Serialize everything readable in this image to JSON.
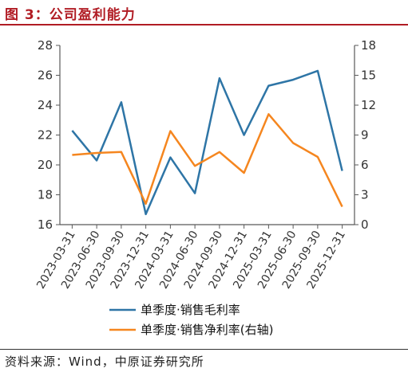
{
  "header": {
    "title": "图 3：公司盈利能力"
  },
  "footer": {
    "source": "资料来源：Wind，中原证券研究所"
  },
  "colors": {
    "series1": "#2e75a6",
    "series2": "#f5861f",
    "title": "#b11c24"
  },
  "chart_data": {
    "type": "line",
    "x": [
      "2023-03-31",
      "2023-06-30",
      "2023-09-30",
      "2023-12-31",
      "2024-03-31",
      "2024-06-30",
      "2024-09-30",
      "2024-12-31",
      "2025-03-31",
      "2025-06-30",
      "2025-09-30",
      "2025-12-31"
    ],
    "series": [
      {
        "name": "单季度·销售毛利率",
        "axis": "left",
        "values": [
          22.3,
          20.3,
          24.2,
          16.7,
          20.5,
          18.1,
          25.8,
          22.0,
          25.3,
          25.7,
          26.3,
          19.6
        ]
      },
      {
        "name": "单季度·销售净利率(右轴)",
        "axis": "right",
        "values": [
          7.0,
          7.2,
          7.3,
          2.1,
          9.4,
          5.9,
          7.3,
          5.2,
          11.1,
          8.2,
          6.8,
          1.8
        ]
      }
    ],
    "left_axis": {
      "ylim": [
        16,
        28
      ],
      "ticks": [
        "16",
        "18",
        "20",
        "22",
        "24",
        "26",
        "28"
      ]
    },
    "right_axis": {
      "ylim": [
        0,
        18
      ],
      "ticks": [
        "0",
        "3",
        "6",
        "9",
        "12",
        "15",
        "18"
      ]
    },
    "grid": false,
    "legend": "bottom"
  }
}
